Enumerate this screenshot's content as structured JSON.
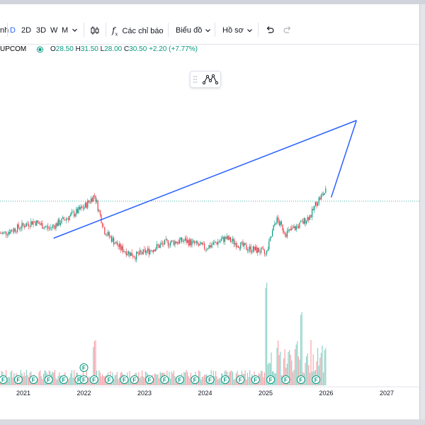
{
  "toolbar": {
    "cut_label": "nh",
    "intervals": [
      "D",
      "2D",
      "3D",
      "W",
      "M"
    ],
    "active_interval": "D",
    "indicators_label": "Các chỉ báo",
    "chart_type_label": "Biểu đồ",
    "profile_label": "Hồ sơ"
  },
  "legend": {
    "exchange": "UPCOM",
    "open_key": "O",
    "open": "28.50",
    "high_key": "H",
    "high": "31.50",
    "low_key": "L",
    "low": "28.00",
    "close_key": "C",
    "close": "30.50",
    "change": "+2.20 (+7.77%)"
  },
  "colors": {
    "up": "#089981",
    "down": "#f23645",
    "trendline": "#2962ff",
    "accent": "#2962ff"
  },
  "icons": [
    "chevron-down-icon",
    "candle-style-icon",
    "fx-icon",
    "undo-icon",
    "redo-icon",
    "live-dot-icon",
    "drag-handle-icon",
    "object-tree-icon"
  ],
  "chart_data": {
    "type": "candlestick",
    "x": [
      "2021",
      "2022",
      "2023",
      "2024",
      "2025",
      "2026",
      "2027"
    ],
    "price_path": [
      [
        "2020-09",
        21.5
      ],
      [
        "2021-03",
        24.0
      ],
      [
        "2021-06",
        22.5
      ],
      [
        "2021-10",
        25.0
      ],
      [
        "2022-01",
        27.0
      ],
      [
        "2022-03",
        29.5
      ],
      [
        "2022-05",
        22.0
      ],
      [
        "2022-08",
        18.5
      ],
      [
        "2022-11",
        16.8
      ],
      [
        "2023-02",
        18.0
      ],
      [
        "2023-05",
        19.5
      ],
      [
        "2023-09",
        20.0
      ],
      [
        "2024-01",
        18.5
      ],
      [
        "2024-05",
        20.5
      ],
      [
        "2024-09",
        18.5
      ],
      [
        "2024-12",
        17.8
      ],
      [
        "2025-01",
        17.0
      ],
      [
        "2025-03",
        24.5
      ],
      [
        "2025-05",
        21.5
      ],
      [
        "2025-08",
        23.5
      ],
      [
        "2025-10",
        25.5
      ],
      [
        "2025-11",
        28.0
      ],
      [
        "2026-01",
        30.5
      ]
    ],
    "current_price": 30.5,
    "trendlines": [
      {
        "start": [
          "2021-07",
          20.5
        ],
        "end": [
          "2026-07",
          45.0
        ]
      },
      {
        "start": [
          "2026-07",
          45.0
        ],
        "end": [
          "2026-02",
          29.0
        ]
      }
    ],
    "volume_spikes": [
      [
        "2025-01",
        1.0
      ],
      [
        "2025-08",
        0.55
      ],
      [
        "2022-03",
        0.35
      ]
    ],
    "event_badge": "F",
    "event_markers": [
      "2020-09",
      "2020-12",
      "2021-03",
      "2021-06",
      "2021-09",
      "2021-12",
      "2022-01",
      "2022-03",
      "2022-06",
      "2022-09",
      "2022-11",
      "2023-02",
      "2023-05",
      "2023-08",
      "2023-11",
      "2024-02",
      "2024-05",
      "2024-08",
      "2024-11",
      "2025-02",
      "2025-05",
      "2025-08",
      "2025-11"
    ],
    "stacked_event_marker": "2022-01",
    "price_line": "dotted"
  }
}
